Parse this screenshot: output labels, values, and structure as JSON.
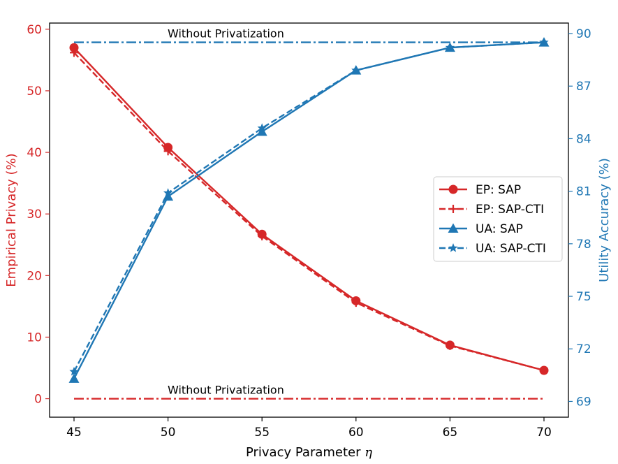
{
  "chart_data": {
    "type": "line",
    "title": "",
    "x": [
      45,
      50,
      55,
      60,
      65,
      70
    ],
    "xlabel": "Privacy Parameter",
    "xlabel_symbol": "η",
    "xlim": [
      43.7,
      71.3
    ],
    "xticks": [
      45,
      50,
      55,
      60,
      65,
      70
    ],
    "ylabel_left": "Empirical Privacy (%)",
    "ylim_left": [
      -3,
      61
    ],
    "yticks_left": [
      0,
      10,
      20,
      30,
      40,
      50,
      60
    ],
    "ylabel_right": "Utility Accuracy (%)",
    "ylim_right": [
      68.1,
      90.6
    ],
    "yticks_right": [
      69,
      72,
      75,
      78,
      81,
      84,
      87,
      90
    ],
    "colors": {
      "ep": "#d62728",
      "ua": "#1f77b4",
      "frame": "#000000"
    },
    "series": [
      {
        "name": "EP: SAP",
        "axis": "left",
        "color": "#d62728",
        "style": "solid",
        "marker": "circle",
        "values": [
          57.0,
          40.8,
          26.7,
          15.9,
          8.7,
          4.6
        ]
      },
      {
        "name": "EP: SAP-CTI",
        "axis": "left",
        "color": "#d62728",
        "style": "dashed",
        "marker": "plus",
        "values": [
          56.2,
          40.2,
          26.4,
          15.6,
          8.6,
          4.6
        ]
      },
      {
        "name": "UA: SAP",
        "axis": "right",
        "color": "#1f77b4",
        "style": "solid",
        "marker": "triangle",
        "values": [
          70.3,
          80.7,
          84.4,
          87.9,
          89.2,
          89.5
        ]
      },
      {
        "name": "UA: SAP-CTI",
        "axis": "right",
        "color": "#1f77b4",
        "style": "dashed",
        "marker": "star",
        "values": [
          70.7,
          80.9,
          84.6,
          87.9,
          89.2,
          89.5
        ]
      }
    ],
    "reference_lines": [
      {
        "label": "Without Privatization",
        "axis": "right",
        "value": 89.5,
        "color": "#1f77b4",
        "style": "dashdot"
      },
      {
        "label": "Without Privatization",
        "axis": "left",
        "value": 0,
        "color": "#d62728",
        "style": "dashdot"
      }
    ],
    "legend": {
      "position": "center-right",
      "entries": [
        "EP: SAP",
        "EP: SAP-CTI",
        "UA: SAP",
        "UA: SAP-CTI"
      ]
    }
  }
}
